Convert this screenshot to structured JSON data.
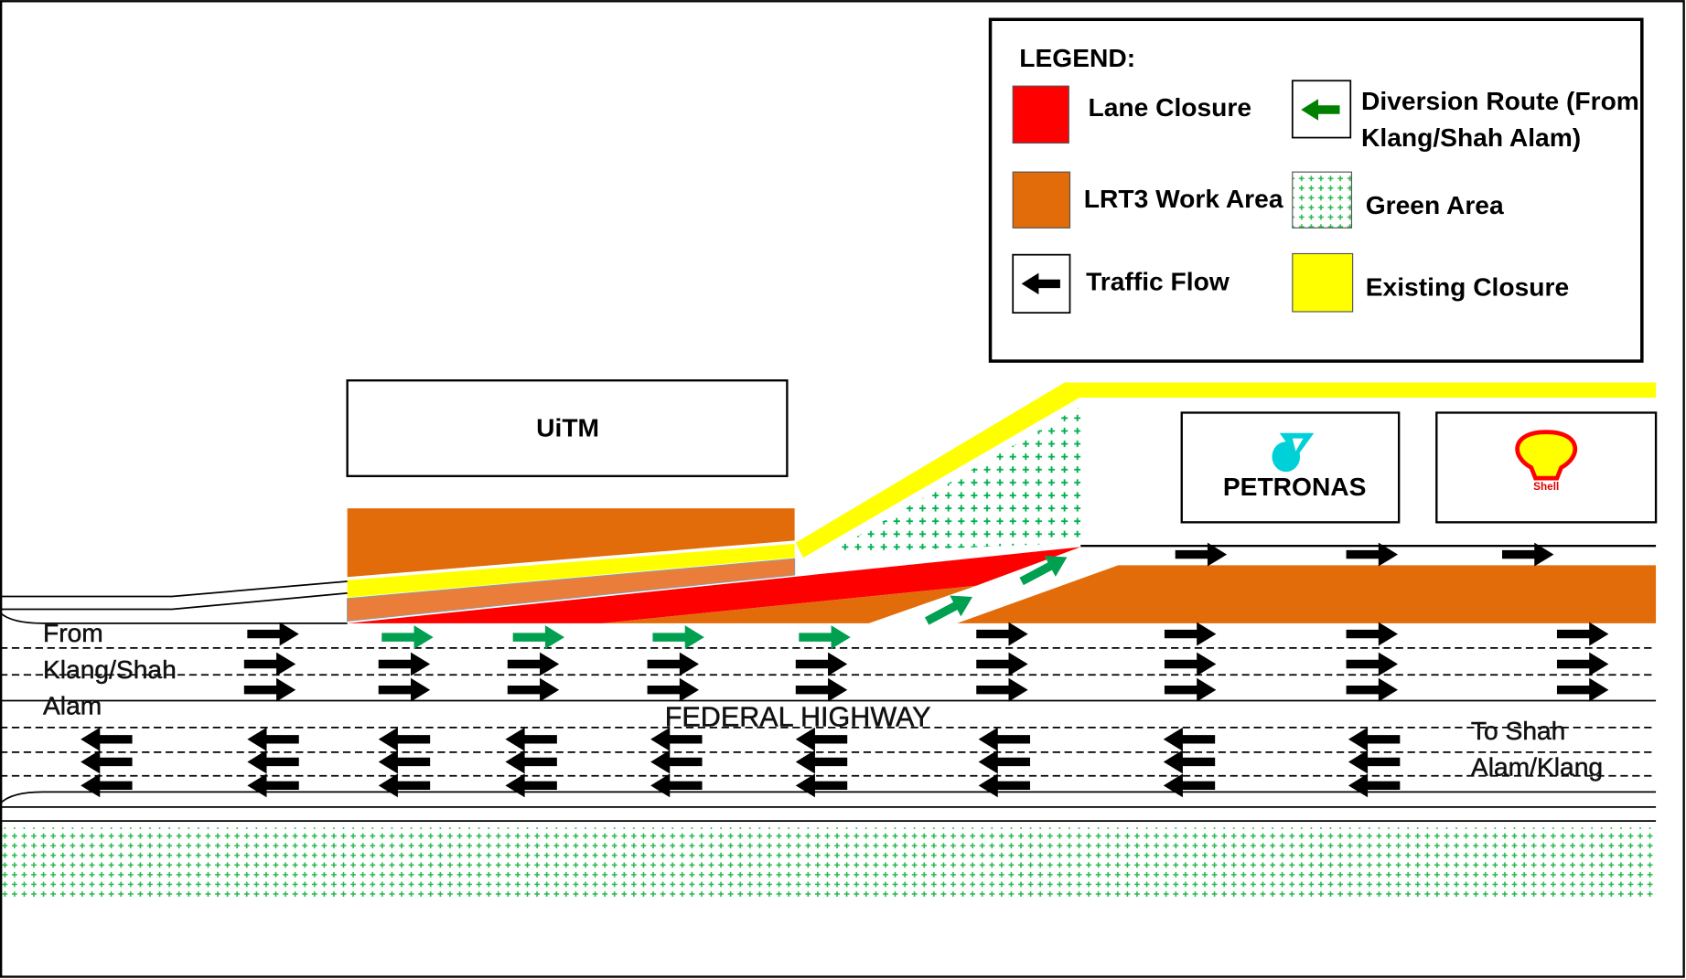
{
  "legend": {
    "title": "LEGEND:",
    "items": [
      {
        "label": "Lane Closure",
        "color": "#ff0000"
      },
      {
        "label": "LRT3 Work Area",
        "color": "#e26b0a"
      },
      {
        "label": "Traffic Flow",
        "icon": "black-arrow-left-icon"
      },
      {
        "label_line1": "Diversion Route (From",
        "label_line2": "Klang/Shah Alam)",
        "icon": "green-arrow-left-icon",
        "color": "#00a050"
      },
      {
        "label": "Green Area",
        "color": "#00b050"
      },
      {
        "label": "Existing Closure",
        "color": "#ffff00"
      }
    ]
  },
  "places": {
    "uitm": "UiTM",
    "petronas": "PETRONAS",
    "shell": "Shell"
  },
  "road": {
    "name": "FEDERAL HIGHWAY",
    "from_line1": "From",
    "from_line2": "Klang/Shah",
    "from_line3": "Alam",
    "to_line1": "To Shah",
    "to_line2": "Alam/Klang"
  },
  "colors": {
    "lane_closure": "#ff0000",
    "work_area": "#e26b0a",
    "work_area_light": "#eb7d3a",
    "existing_closure": "#ffff00",
    "green": "#00b050",
    "diversion": "#00a050"
  }
}
